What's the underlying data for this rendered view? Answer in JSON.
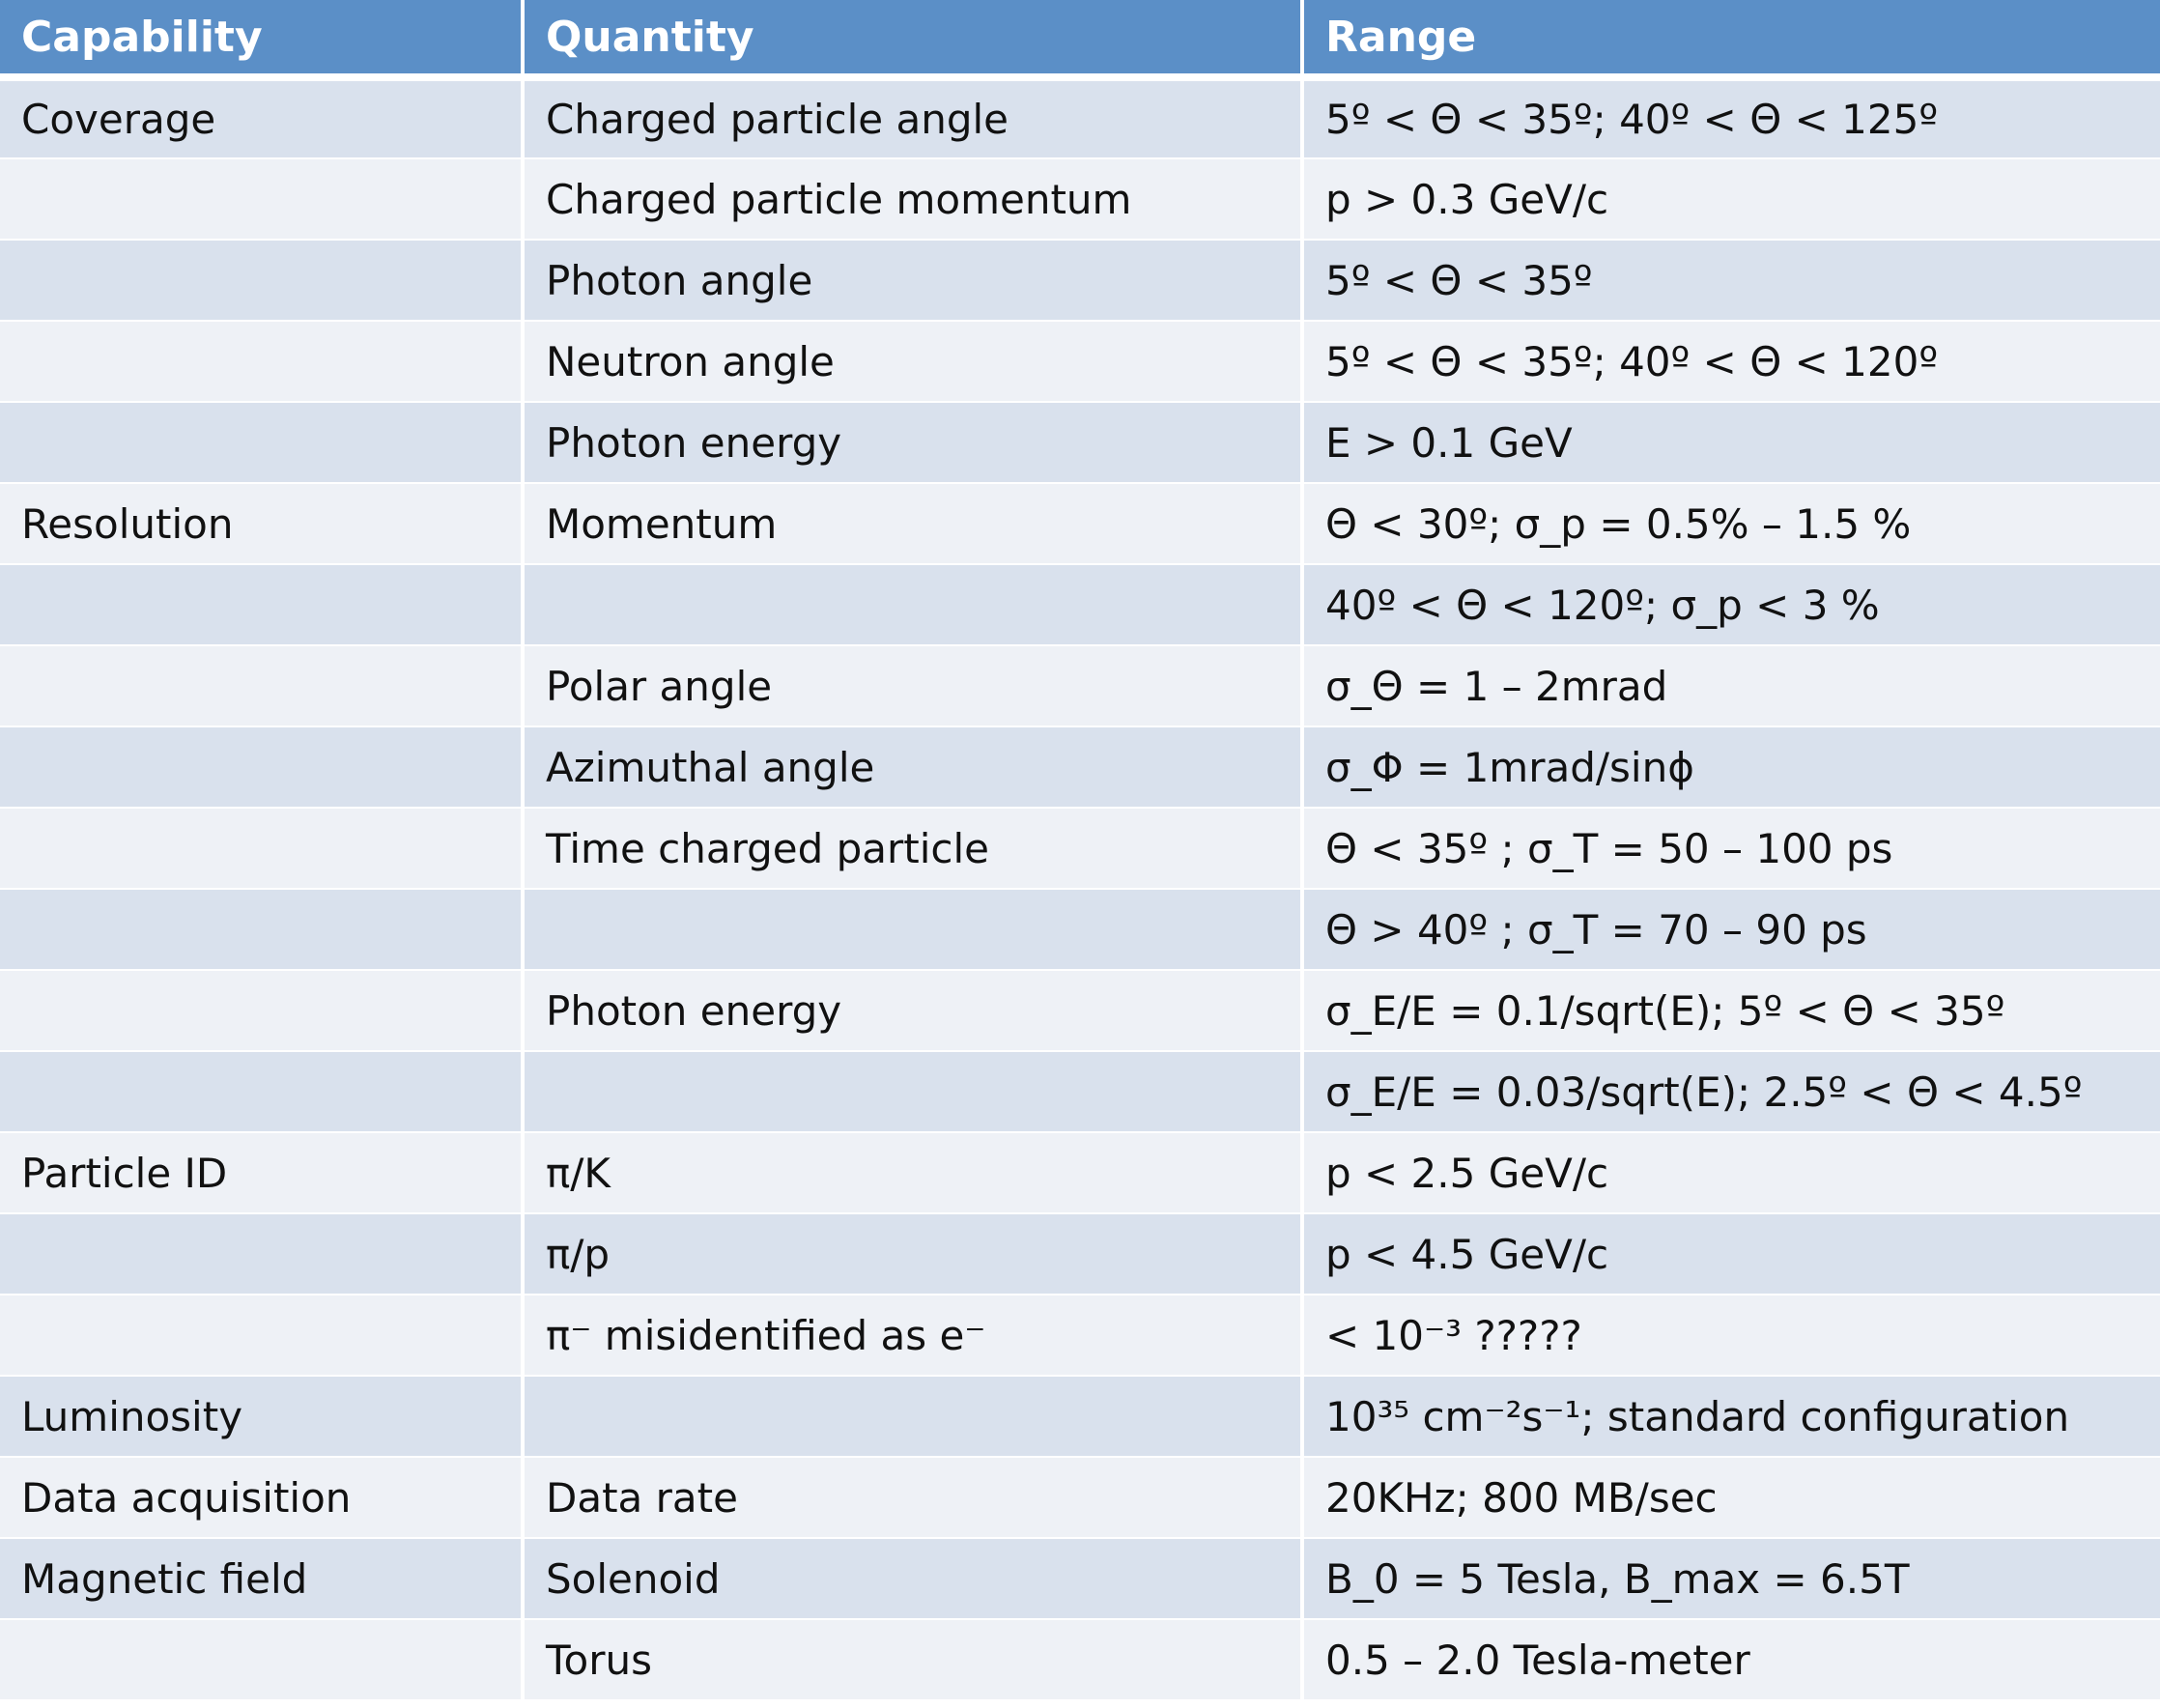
{
  "table": {
    "headers": [
      "Capability",
      "Quantity",
      "Range"
    ],
    "rows": [
      {
        "capability": "Coverage",
        "quantity": "Charged particle angle",
        "range": "5º < Θ < 35º;  40º < Θ < 125º"
      },
      {
        "capability": "",
        "quantity": "Charged particle momentum",
        "range": "p > 0.3 GeV/c"
      },
      {
        "capability": "",
        "quantity": "Photon angle",
        "range": "5º < Θ < 35º"
      },
      {
        "capability": "",
        "quantity": "Neutron angle",
        "range": "5º < Θ < 35º; 40º < Θ < 120º"
      },
      {
        "capability": "",
        "quantity": "Photon energy",
        "range": "E > 0.1 GeV"
      },
      {
        "capability": "Resolution",
        "quantity": "Momentum",
        "range": "Θ < 30º; σ_p = 0.5% – 1.5 %"
      },
      {
        "capability": "",
        "quantity": "",
        "range": "40º < Θ < 120º;  σ_p < 3 %"
      },
      {
        "capability": "",
        "quantity": "Polar angle",
        "range": "σ_Θ = 1 – 2mrad"
      },
      {
        "capability": "",
        "quantity": "Azimuthal angle",
        "range": "σ_Φ = 1mrad/sinϕ"
      },
      {
        "capability": "",
        "quantity": "Time charged particle",
        "range": "Θ < 35º ; σ_T = 50 – 100 ps"
      },
      {
        "capability": "",
        "quantity": "",
        "range": "Θ > 40º ; σ_T = 70 – 90 ps"
      },
      {
        "capability": "",
        "quantity": "Photon energy",
        "range": "σ_E/E = 0.1/sqrt(E);  5º < Θ < 35º"
      },
      {
        "capability": "",
        "quantity": "",
        "range": "σ_E/E = 0.03/sqrt(E);  2.5º < Θ < 4.5º"
      },
      {
        "capability": "Particle ID",
        "quantity": "π/K",
        "range": "p < 2.5 GeV/c"
      },
      {
        "capability": "",
        "quantity": "π/p",
        "range": "p < 4.5 GeV/c"
      },
      {
        "capability": "",
        "quantity": "π⁻ misidentified as e⁻",
        "range": "< 10⁻³   ?????"
      },
      {
        "capability": "Luminosity",
        "quantity": "",
        "range": " 10³⁵ cm⁻²s⁻¹; standard configuration"
      },
      {
        "capability": "Data acquisition",
        "quantity": "Data rate",
        "range": "20KHz;  800 MB/sec"
      },
      {
        "capability": "Magnetic field",
        "quantity": "Solenoid",
        "range": "B_0 = 5 Tesla, B_max = 6.5T"
      },
      {
        "capability": "",
        "quantity": "Torus",
        "range": "0.5 – 2.0 Tesla-meter"
      }
    ]
  }
}
